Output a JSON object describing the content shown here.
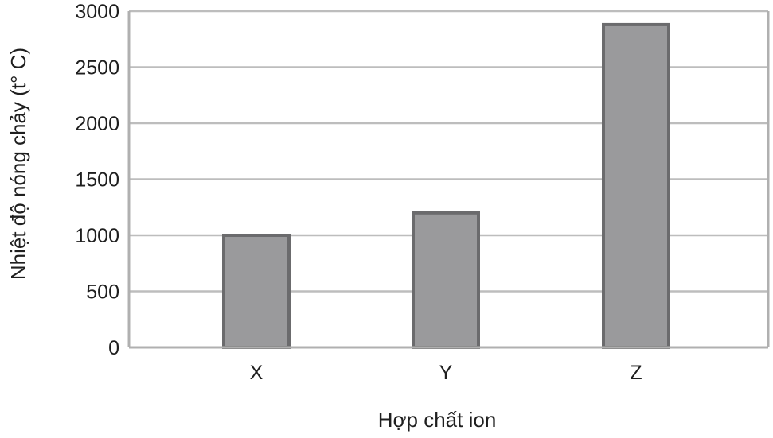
{
  "chart_data": {
    "type": "bar",
    "title": "",
    "xlabel": "Hợp chất ion",
    "ylabel": "Nhiệt độ nóng chảy (t° C)",
    "categories": [
      "X",
      "Y",
      "Z"
    ],
    "values": [
      1000,
      1200,
      2880
    ],
    "ylim": [
      0,
      3000
    ],
    "yticks": [
      0,
      500,
      1000,
      1500,
      2000,
      2500,
      3000
    ],
    "grid": true,
    "legend": "none"
  },
  "colors": {
    "bar_fill": "#9a9a9c",
    "bar_stroke": "#6b6b6d",
    "grid": "#bdbdbd",
    "axis": "#b0b0b0",
    "text": "#1f1f1f"
  }
}
